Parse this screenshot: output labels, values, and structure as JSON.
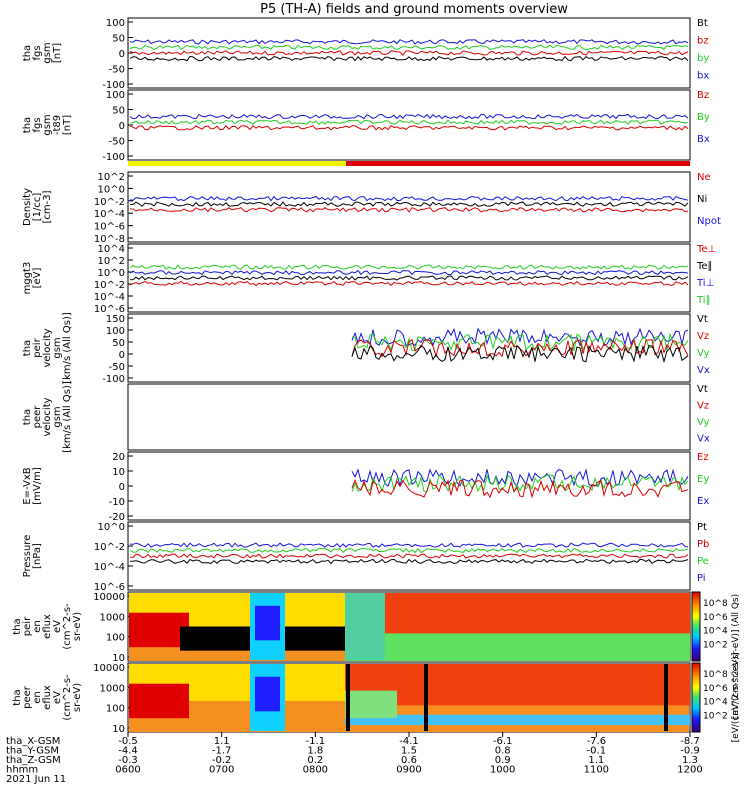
{
  "title": "P5 (TH-A) fields and ground moments overview",
  "colors": {
    "black": "#000000",
    "red": "#dd0000",
    "green": "#22cc22",
    "blue": "#1515dd",
    "yellow": "#f0f000"
  },
  "chart_data": [
    {
      "type": "line",
      "panel": "fgs",
      "ylabel": [
        "tha",
        "fgs",
        "gsm",
        "[nT]"
      ],
      "yticks": [
        "100",
        "50",
        "0",
        "-50",
        "-100"
      ],
      "ylim": [
        -100,
        110
      ],
      "legend": [
        {
          "name": "Bt",
          "color": "#000000"
        },
        {
          "name": "bz",
          "color": "#dd0000"
        },
        {
          "name": "by",
          "color": "#22cc22"
        },
        {
          "name": "bx",
          "color": "#1515dd"
        }
      ]
    },
    {
      "type": "line",
      "panel": "fgs-t89",
      "ylabel": [
        "tha",
        "fgs",
        "gsm",
        "-t89",
        "[nT]"
      ],
      "yticks": [
        "100",
        "50",
        "0",
        "-50",
        "-100"
      ],
      "ylim": [
        -120,
        110
      ],
      "legend": [
        {
          "name": "Bz",
          "color": "#dd0000"
        },
        {
          "name": "By",
          "color": "#22cc22"
        },
        {
          "name": "Bx",
          "color": "#1515dd"
        }
      ]
    },
    {
      "type": "line",
      "panel": "density",
      "ylabel": [
        "Density",
        "[1/cc]",
        "[cm-3]"
      ],
      "yticks": [
        "10^2",
        "10^0",
        "10^-2",
        "10^-4",
        "10^-6",
        "10^-8"
      ],
      "log": true,
      "legend": [
        {
          "name": "Ne",
          "color": "#dd0000"
        },
        {
          "name": "Ni",
          "color": "#000000"
        },
        {
          "name": "Npot",
          "color": "#1515dd"
        }
      ]
    },
    {
      "type": "line",
      "panel": "temperature",
      "ylabel": [
        "mggt3",
        "[eV]"
      ],
      "yticks": [
        "10^4",
        "10^2",
        "10^0",
        "10^-2",
        "10^-4",
        "10^-6"
      ],
      "log": true,
      "legend": [
        {
          "name": "Te⊥",
          "color": "#dd0000"
        },
        {
          "name": "Te∥",
          "color": "#000000"
        },
        {
          "name": "Ti⊥",
          "color": "#1515dd"
        },
        {
          "name": "Ti∥",
          "color": "#22cc22"
        }
      ]
    },
    {
      "type": "line",
      "panel": "peir-velocity",
      "ylabel": [
        "tha",
        "peir",
        "velocity",
        "gsm",
        "[km/s (All Qs)]"
      ],
      "yticks": [
        "150",
        "100",
        "50",
        "0",
        "-50",
        "-100"
      ],
      "ylim": [
        -100,
        160
      ],
      "legend": [
        {
          "name": "Vt",
          "color": "#000000"
        },
        {
          "name": "Vz",
          "color": "#dd0000"
        },
        {
          "name": "Vy",
          "color": "#22cc22"
        },
        {
          "name": "Vx",
          "color": "#1515dd"
        }
      ]
    },
    {
      "type": "line",
      "panel": "peer-velocity",
      "ylabel": [
        "tha",
        "peer",
        "velocity",
        "gsm",
        "[km/s (All Qs)]"
      ],
      "yticks": [],
      "legend": [
        {
          "name": "Vt",
          "color": "#000000"
        },
        {
          "name": "Vz",
          "color": "#dd0000"
        },
        {
          "name": "Vy",
          "color": "#22cc22"
        },
        {
          "name": "Vx",
          "color": "#1515dd"
        }
      ]
    },
    {
      "type": "line",
      "panel": "efield",
      "ylabel": [
        "E=-VxB",
        "[mV/m]"
      ],
      "yticks": [
        "20",
        "10",
        "0",
        "-10",
        "-20"
      ],
      "ylim": [
        -20,
        20
      ],
      "legend": [
        {
          "name": "Ez",
          "color": "#dd0000"
        },
        {
          "name": "Ey",
          "color": "#22cc22"
        },
        {
          "name": "Ex",
          "color": "#1515dd"
        }
      ]
    },
    {
      "type": "line",
      "panel": "pressure",
      "ylabel": [
        "Pressure",
        "[nPa]"
      ],
      "yticks": [
        "10^0",
        "10^-2",
        "10^-4",
        "10^-6"
      ],
      "log": true,
      "legend": [
        {
          "name": "Pt",
          "color": "#000000"
        },
        {
          "name": "Pb",
          "color": "#dd0000"
        },
        {
          "name": "Pe",
          "color": "#22cc22"
        },
        {
          "name": "Pi",
          "color": "#1515dd"
        }
      ]
    },
    {
      "type": "heatmap",
      "panel": "peir-eflux",
      "ylabel": [
        "tha",
        "peir",
        "en",
        "eflux",
        "eV",
        "(cm^2-s-",
        "sr-eV)"
      ],
      "yticks": [
        "10000",
        "1000",
        "100",
        "10"
      ],
      "log": true,
      "colorbar": {
        "label": "[eV/(cm^2-s-sr-eV)] (All Qs)",
        "ticks": [
          "10^8",
          "10^6",
          "10^4",
          "10^2"
        ]
      }
    },
    {
      "type": "heatmap",
      "panel": "peer-eflux",
      "ylabel": [
        "tha",
        "peer",
        "en",
        "eflux",
        "eV",
        "(cm^2-s-",
        "sr-eV)"
      ],
      "yticks": [
        "10000",
        "1000",
        "100",
        "10"
      ],
      "log": true,
      "colorbar": {
        "label": "[eV/(cm^2-s-sr-eV)]",
        "ticks": [
          "10^8",
          "10^6",
          "10^4",
          "10^2"
        ]
      }
    }
  ],
  "xaxis": {
    "rows": [
      {
        "label": "tha_X-GSM",
        "values": [
          "-0.5",
          "1.1",
          "-1.1",
          "-4.1",
          "-6.1",
          "-7.6",
          "-8.7"
        ]
      },
      {
        "label": "tha_Y-GSM",
        "values": [
          "-4.4",
          "-1.7",
          "1.8",
          "1.5",
          "0.8",
          "-0.1",
          "-0.9"
        ]
      },
      {
        "label": "tha_Z-GSM",
        "values": [
          "-0.3",
          "-0.2",
          "0.2",
          "0.6",
          "0.9",
          "1.1",
          "1.3"
        ]
      },
      {
        "label": "hhmm",
        "values": [
          "0600",
          "0700",
          "0800",
          "0900",
          "1000",
          "1100",
          "1200"
        ]
      }
    ],
    "date": "2021 Jun 11"
  }
}
